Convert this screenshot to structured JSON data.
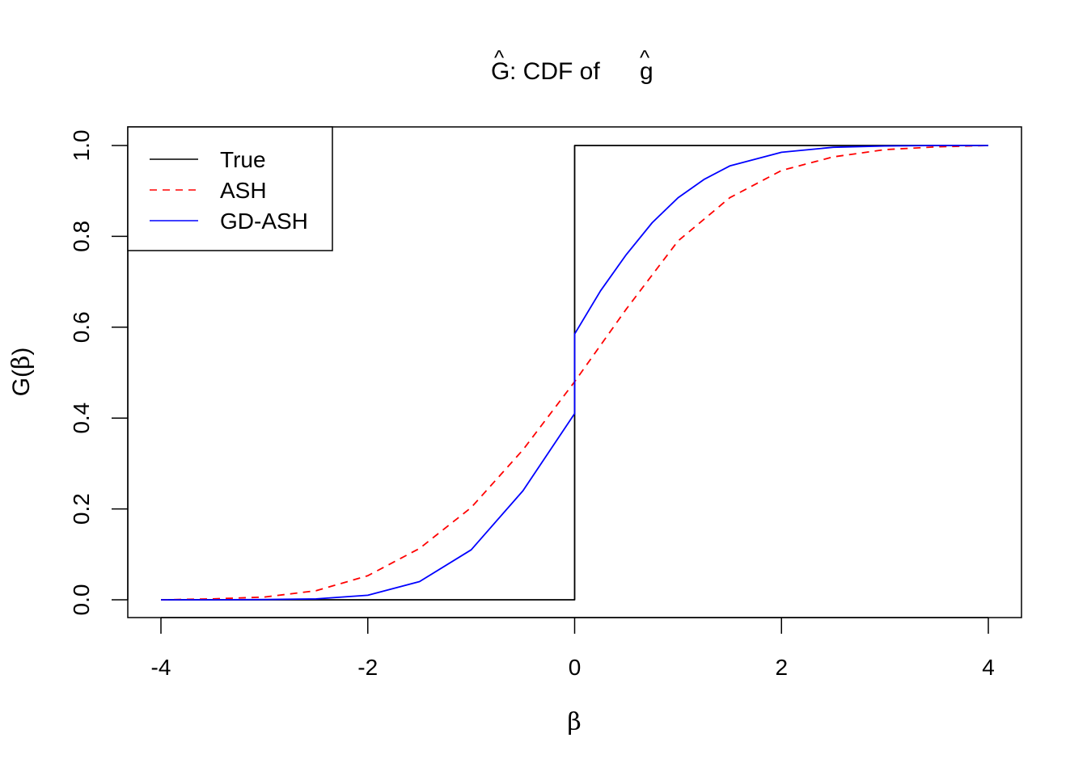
{
  "chart_data": {
    "type": "line",
    "title_main": "G",
    "title_hat": "^",
    "title_rest": ": CDF of ",
    "title_g": "g",
    "xlabel": "β",
    "ylabel_G": "G",
    "ylabel_paren_open": "(",
    "ylabel_beta": "β",
    "ylabel_paren_close": ")",
    "xlim": [
      -4,
      4
    ],
    "ylim": [
      0,
      1
    ],
    "xticks": [
      -4,
      -2,
      0,
      2,
      4
    ],
    "yticks": [
      0.0,
      0.2,
      0.4,
      0.6,
      0.8,
      1.0
    ],
    "xtick_labels": [
      "-4",
      "-2",
      "0",
      "2",
      "4"
    ],
    "ytick_labels": [
      "0.0",
      "0.2",
      "0.4",
      "0.6",
      "0.8",
      "1.0"
    ],
    "grid": false,
    "legend_position": "top-left",
    "series": [
      {
        "name": "True",
        "color": "#000000",
        "dash": "solid",
        "x": [
          -4,
          -3,
          -2,
          -1,
          0,
          0,
          1,
          2,
          3,
          4
        ],
        "y": [
          0,
          0,
          0,
          0,
          0,
          1,
          1,
          1,
          1,
          1
        ]
      },
      {
        "name": "ASH",
        "color": "#ff0000",
        "dash": "dashed",
        "x": [
          -4,
          -3.5,
          -3,
          -2.5,
          -2,
          -1.5,
          -1,
          -0.5,
          0,
          0.5,
          1,
          1.5,
          2,
          2.5,
          3,
          3.5,
          4
        ],
        "y": [
          0.0,
          0.002,
          0.006,
          0.02,
          0.053,
          0.113,
          0.203,
          0.33,
          0.48,
          0.64,
          0.79,
          0.885,
          0.945,
          0.975,
          0.991,
          0.997,
          1.0
        ]
      },
      {
        "name": "GD-ASH",
        "color": "#0000ff",
        "dash": "solid",
        "x": [
          -4,
          -3.5,
          -3,
          -2.5,
          -2,
          -1.5,
          -1,
          -0.5,
          0,
          0,
          0.25,
          0.5,
          0.75,
          1,
          1.25,
          1.5,
          2,
          2.5,
          3,
          3.5,
          4
        ],
        "y": [
          0.0,
          0.0,
          0.0005,
          0.002,
          0.01,
          0.04,
          0.11,
          0.24,
          0.41,
          0.585,
          0.68,
          0.76,
          0.83,
          0.885,
          0.925,
          0.955,
          0.985,
          0.996,
          0.999,
          1.0,
          1.0
        ]
      }
    ]
  }
}
